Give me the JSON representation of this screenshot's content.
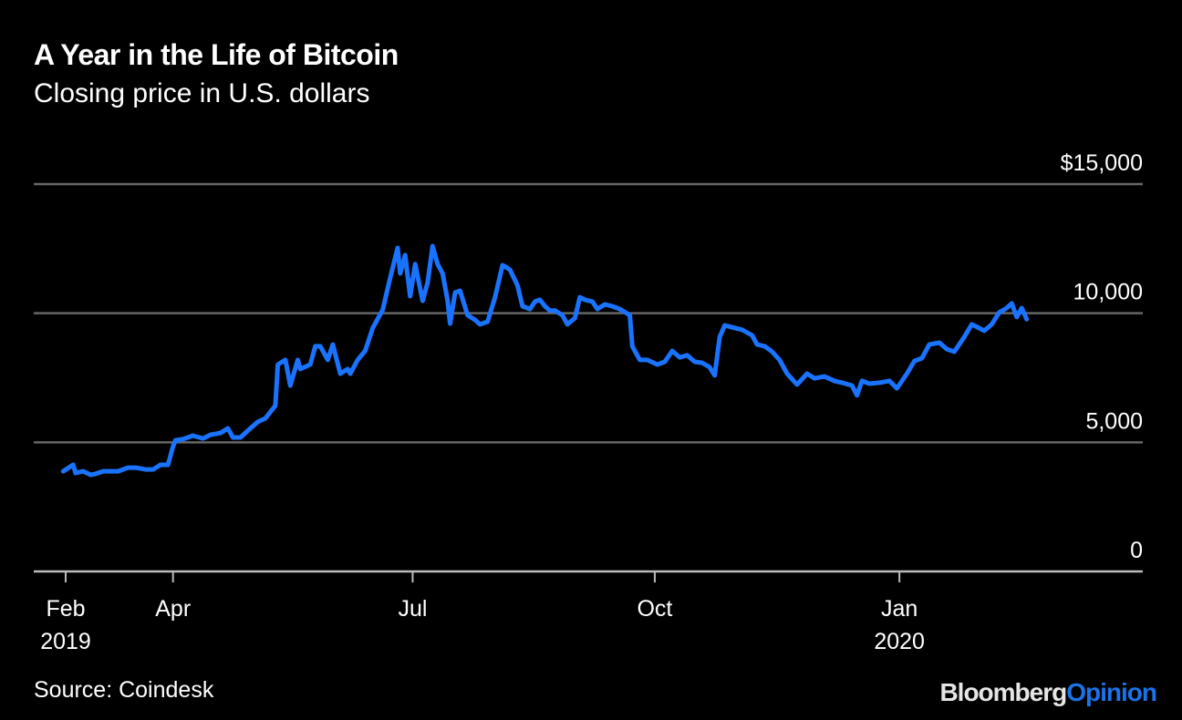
{
  "header": {
    "title": "A Year in the Life of Bitcoin",
    "subtitle": "Closing price in U.S. dollars"
  },
  "footer": {
    "source": "Source: Coindesk",
    "logo_part1": "Bloomberg",
    "logo_part2": "Opinion"
  },
  "colors": {
    "line": "#1a73ff",
    "grid": "#666666",
    "axis": "#bbbbbb",
    "background": "#000000"
  },
  "chart_data": {
    "type": "line",
    "title": "A Year in the Life of Bitcoin",
    "subtitle": "Closing price in U.S. dollars",
    "xlabel": "",
    "ylabel": "",
    "ylim": [
      0,
      15000
    ],
    "grid": true,
    "y_ticks": [
      {
        "value": 15000,
        "label": "$15,000"
      },
      {
        "value": 10000,
        "label": "10,000"
      },
      {
        "value": 5000,
        "label": "5,000"
      },
      {
        "value": 0,
        "label": "0"
      }
    ],
    "x_ticks": [
      {
        "day": 0,
        "label": "Feb",
        "sublabel": "2019"
      },
      {
        "day": 43,
        "label": "Apr",
        "sublabel": ""
      },
      {
        "day": 139,
        "label": "Jul",
        "sublabel": ""
      },
      {
        "day": 236,
        "label": "Oct",
        "sublabel": ""
      },
      {
        "day": 334,
        "label": "Jan",
        "sublabel": "2020"
      }
    ],
    "x_unit": "days since 2019-02-01",
    "series": [
      {
        "name": "Bitcoin closing price",
        "points": [
          [
            -1,
            3880
          ],
          [
            3,
            4130
          ],
          [
            4,
            3810
          ],
          [
            7,
            3880
          ],
          [
            10,
            3740
          ],
          [
            12,
            3780
          ],
          [
            15,
            3880
          ],
          [
            17,
            3880
          ],
          [
            21,
            3880
          ],
          [
            25,
            4020
          ],
          [
            28,
            4020
          ],
          [
            32,
            3950
          ],
          [
            35,
            3950
          ],
          [
            38,
            4130
          ],
          [
            41,
            4130
          ],
          [
            43,
            4840
          ],
          [
            44,
            5080
          ],
          [
            47,
            5120
          ],
          [
            51,
            5260
          ],
          [
            55,
            5150
          ],
          [
            58,
            5290
          ],
          [
            62,
            5360
          ],
          [
            65,
            5540
          ],
          [
            67,
            5190
          ],
          [
            70,
            5190
          ],
          [
            74,
            5540
          ],
          [
            77,
            5790
          ],
          [
            80,
            5930
          ],
          [
            84,
            6420
          ],
          [
            85,
            8010
          ],
          [
            88,
            8190
          ],
          [
            90,
            7200
          ],
          [
            93,
            8190
          ],
          [
            94,
            7840
          ],
          [
            98,
            8010
          ],
          [
            100,
            8720
          ],
          [
            102,
            8720
          ],
          [
            105,
            8190
          ],
          [
            107,
            8790
          ],
          [
            110,
            7660
          ],
          [
            113,
            7840
          ],
          [
            114,
            7660
          ],
          [
            117,
            8190
          ],
          [
            120,
            8540
          ],
          [
            123,
            9430
          ],
          [
            127,
            10130
          ],
          [
            130,
            11370
          ],
          [
            133,
            12530
          ],
          [
            134,
            11540
          ],
          [
            136,
            12250
          ],
          [
            138,
            10660
          ],
          [
            140,
            11900
          ],
          [
            143,
            10480
          ],
          [
            145,
            11190
          ],
          [
            147,
            12600
          ],
          [
            149,
            11900
          ],
          [
            151,
            11540
          ],
          [
            153,
            10480
          ],
          [
            154,
            9600
          ],
          [
            156,
            10800
          ],
          [
            158,
            10870
          ],
          [
            161,
            9920
          ],
          [
            164,
            9740
          ],
          [
            166,
            9570
          ],
          [
            169,
            9670
          ],
          [
            172,
            10620
          ],
          [
            175,
            11860
          ],
          [
            177,
            11750
          ],
          [
            178,
            11680
          ],
          [
            181,
            11080
          ],
          [
            183,
            10270
          ],
          [
            186,
            10160
          ],
          [
            188,
            10450
          ],
          [
            190,
            10520
          ],
          [
            192,
            10270
          ],
          [
            194,
            10100
          ],
          [
            196,
            10100
          ],
          [
            199,
            9920
          ],
          [
            201,
            9570
          ],
          [
            204,
            9810
          ],
          [
            206,
            10620
          ],
          [
            208,
            10520
          ],
          [
            211,
            10450
          ],
          [
            213,
            10160
          ],
          [
            216,
            10340
          ],
          [
            219,
            10270
          ],
          [
            222,
            10160
          ],
          [
            226,
            9920
          ],
          [
            227,
            8720
          ],
          [
            230,
            8190
          ],
          [
            233,
            8190
          ],
          [
            237,
            8010
          ],
          [
            240,
            8120
          ],
          [
            243,
            8540
          ],
          [
            246,
            8290
          ],
          [
            249,
            8370
          ],
          [
            252,
            8120
          ],
          [
            255,
            8080
          ],
          [
            258,
            7910
          ],
          [
            260,
            7590
          ],
          [
            262,
            9080
          ],
          [
            264,
            9530
          ],
          [
            268,
            9430
          ],
          [
            271,
            9360
          ],
          [
            275,
            9140
          ],
          [
            277,
            8790
          ],
          [
            280,
            8720
          ],
          [
            283,
            8510
          ],
          [
            286,
            8190
          ],
          [
            289,
            7660
          ],
          [
            293,
            7240
          ],
          [
            297,
            7660
          ],
          [
            300,
            7480
          ],
          [
            304,
            7550
          ],
          [
            308,
            7380
          ],
          [
            311,
            7310
          ],
          [
            315,
            7200
          ],
          [
            317,
            6820
          ],
          [
            319,
            7380
          ],
          [
            322,
            7270
          ],
          [
            326,
            7310
          ],
          [
            330,
            7380
          ],
          [
            333,
            7090
          ],
          [
            337,
            7660
          ],
          [
            340,
            8150
          ],
          [
            343,
            8260
          ],
          [
            346,
            8790
          ],
          [
            350,
            8860
          ],
          [
            353,
            8610
          ],
          [
            356,
            8510
          ],
          [
            360,
            9080
          ],
          [
            363,
            9570
          ],
          [
            368,
            9320
          ],
          [
            371,
            9570
          ],
          [
            374,
            10030
          ],
          [
            377,
            10200
          ],
          [
            379,
            10380
          ],
          [
            381,
            9850
          ],
          [
            383,
            10200
          ],
          [
            385,
            9770
          ]
        ]
      }
    ]
  }
}
